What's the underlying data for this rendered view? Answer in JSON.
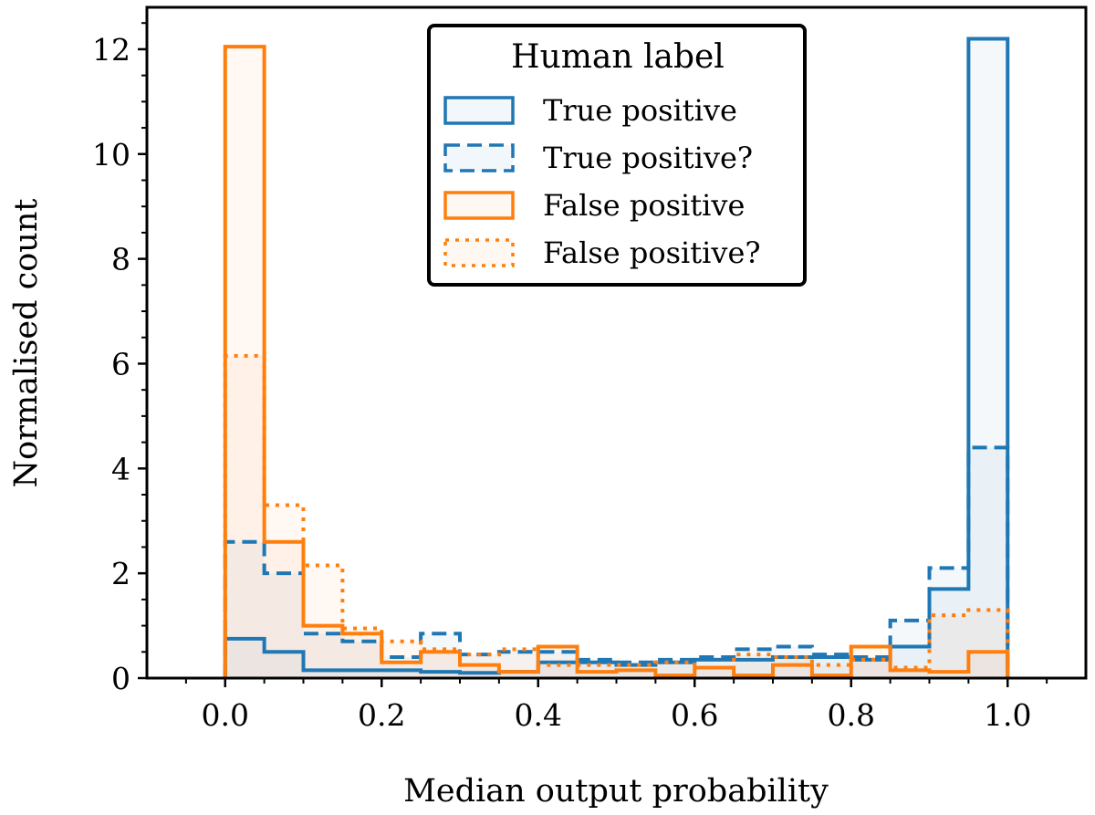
{
  "chart_data": {
    "type": "histogram",
    "xlabel": "Median output probability",
    "ylabel": "Normalised count",
    "xlim": [
      -0.1,
      1.1
    ],
    "ylim": [
      0,
      12.8
    ],
    "xticks": [
      0.0,
      0.2,
      0.4,
      0.6,
      0.8,
      1.0
    ],
    "xtick_labels": [
      "0.0",
      "0.2",
      "0.4",
      "0.6",
      "0.8",
      "1.0"
    ],
    "yticks": [
      0,
      2,
      4,
      6,
      8,
      10,
      12
    ],
    "ytick_labels": [
      "0",
      "2",
      "4",
      "6",
      "8",
      "10",
      "12"
    ],
    "bin_edges": [
      0.0,
      0.05,
      0.1,
      0.15,
      0.2,
      0.25,
      0.3,
      0.35,
      0.4,
      0.45,
      0.5,
      0.55,
      0.6,
      0.65,
      0.7,
      0.75,
      0.8,
      0.85,
      0.9,
      0.95,
      1.0
    ],
    "legend": {
      "title": "Human label",
      "location": "upper center"
    },
    "series": [
      {
        "name": "True positive",
        "color": "#1f77b4",
        "linestyle": "solid",
        "values": [
          0.75,
          0.5,
          0.15,
          0.15,
          0.15,
          0.12,
          0.1,
          0.12,
          0.3,
          0.3,
          0.25,
          0.3,
          0.35,
          0.35,
          0.4,
          0.4,
          0.35,
          0.6,
          1.7,
          12.2
        ]
      },
      {
        "name": "True positive?",
        "color": "#1f77b4",
        "linestyle": "dashed",
        "values": [
          2.6,
          2.0,
          0.85,
          0.7,
          0.4,
          0.85,
          0.45,
          0.5,
          0.5,
          0.35,
          0.3,
          0.35,
          0.4,
          0.55,
          0.6,
          0.45,
          0.4,
          1.1,
          2.1,
          4.4
        ]
      },
      {
        "name": "False positive",
        "color": "#ff7f0e",
        "linestyle": "solid",
        "values": [
          12.05,
          2.6,
          1.0,
          0.85,
          0.3,
          0.5,
          0.25,
          0.12,
          0.6,
          0.12,
          0.15,
          0.05,
          0.2,
          0.05,
          0.25,
          0.05,
          0.6,
          0.15,
          0.12,
          0.5
        ]
      },
      {
        "name": "False positive?",
        "color": "#ff7f0e",
        "linestyle": "dotted",
        "values": [
          6.15,
          3.3,
          2.15,
          0.95,
          0.7,
          0.55,
          0.45,
          0.55,
          0.25,
          0.25,
          0.25,
          0.3,
          0.2,
          0.45,
          0.4,
          0.25,
          0.35,
          0.2,
          1.2,
          1.3
        ]
      }
    ]
  }
}
